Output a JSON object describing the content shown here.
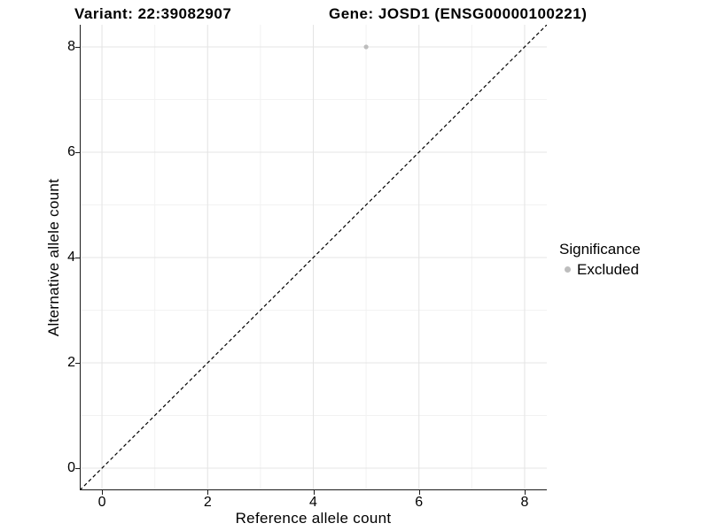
{
  "titles": {
    "variant": "Variant: 22:39082907",
    "gene": "Gene: JOSD1 (ENSG00000100221)"
  },
  "colors": {
    "background": "#ffffff",
    "grid_major": "#e4e4e4",
    "grid_minor": "#f2f2f2",
    "axis_line": "#1a1a1a",
    "text": "#000000",
    "reference_line": "#000000",
    "excluded_point": "#bdbdbd"
  },
  "chart_data": {
    "type": "scatter",
    "xlabel": "Reference allele count",
    "ylabel": "Alternative allele count",
    "xlim": [
      -0.42,
      8.42
    ],
    "ylim": [
      -0.42,
      8.42
    ],
    "xticks": [
      0,
      2,
      4,
      6,
      8
    ],
    "yticks": [
      0,
      2,
      4,
      6,
      8
    ],
    "minor_breaks": [
      1,
      3,
      5,
      7
    ],
    "grid": "on",
    "reference_line": {
      "slope": 1,
      "intercept": 0,
      "style": "dashed"
    },
    "series": [
      {
        "name": "Excluded",
        "color": "#bdbdbd",
        "points": [
          {
            "x": 5,
            "y": 8
          }
        ]
      }
    ],
    "legend": {
      "title": "Significance",
      "position": "right",
      "items": [
        {
          "label": "Excluded",
          "color": "#bdbdbd"
        }
      ]
    }
  }
}
